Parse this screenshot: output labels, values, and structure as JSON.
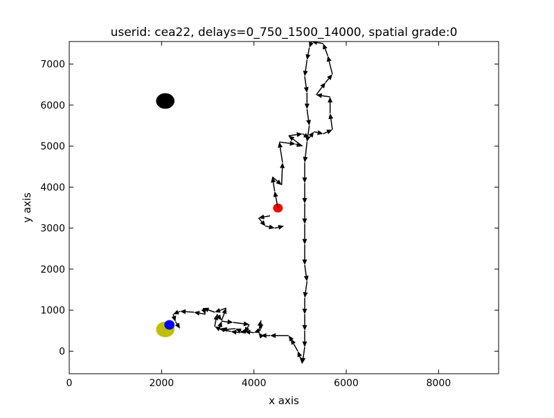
{
  "chart_data": {
    "type": "scatter",
    "title": "userid: cea22, delays=0_750_1500_14000, spatial grade:0",
    "xlabel": "x axis",
    "ylabel": "y axis",
    "xlim": [
      0,
      9300
    ],
    "ylim": [
      7550,
      -550
    ],
    "y_inverted": true,
    "grid": false,
    "x_ticks": [
      0,
      2000,
      4000,
      6000,
      8000
    ],
    "y_ticks": [
      0,
      1000,
      2000,
      3000,
      4000,
      5000,
      6000,
      7000
    ],
    "markers": [
      {
        "name": "yellow",
        "x": 2080,
        "y": 530,
        "rx": 200,
        "ry": 190,
        "color": "#bfbf00"
      },
      {
        "name": "blue",
        "x": 2170,
        "y": 640,
        "rx": 110,
        "ry": 115,
        "color": "#0000ff"
      },
      {
        "name": "red",
        "x": 4520,
        "y": 3490,
        "rx": 105,
        "ry": 110,
        "color": "#ff0000"
      },
      {
        "name": "black",
        "x": 2080,
        "y": 6100,
        "rx": 200,
        "ry": 190,
        "color": "#000000"
      }
    ],
    "path": [
      [
        4520,
        3490
      ],
      [
        4450,
        3900
      ],
      [
        4400,
        4250
      ],
      [
        4600,
        4050
      ],
      [
        4620,
        4600
      ],
      [
        4550,
        5100
      ],
      [
        4900,
        5050
      ],
      [
        5050,
        5000
      ],
      [
        4750,
        5250
      ],
      [
        5050,
        5300
      ],
      [
        5200,
        5200
      ],
      [
        5300,
        5350
      ],
      [
        5500,
        5300
      ],
      [
        5700,
        5400
      ],
      [
        5650,
        5800
      ],
      [
        5650,
        6200
      ],
      [
        5350,
        6250
      ],
      [
        5550,
        6550
      ],
      [
        5700,
        6750
      ],
      [
        5600,
        7200
      ],
      [
        5500,
        7500
      ],
      [
        5250,
        7550
      ],
      [
        5200,
        7400
      ],
      [
        5150,
        7100
      ],
      [
        5100,
        6700
      ],
      [
        5150,
        6300
      ],
      [
        5150,
        5900
      ],
      [
        5200,
        5500
      ],
      [
        5150,
        5100
      ],
      [
        5100,
        4600
      ],
      [
        5100,
        4100
      ],
      [
        5100,
        3600
      ],
      [
        5100,
        3100
      ],
      [
        5100,
        2600
      ],
      [
        5100,
        2100
      ],
      [
        5150,
        1700
      ],
      [
        5100,
        1300
      ],
      [
        5100,
        900
      ],
      [
        5100,
        500
      ],
      [
        5100,
        100
      ],
      [
        5050,
        -300
      ],
      [
        4950,
        0
      ],
      [
        4800,
        300
      ],
      [
        4750,
        380
      ],
      [
        4350,
        380
      ],
      [
        4150,
        380
      ],
      [
        4100,
        450
      ],
      [
        4150,
        750
      ],
      [
        4150,
        520
      ],
      [
        4000,
        450
      ],
      [
        3800,
        480
      ],
      [
        3700,
        450
      ],
      [
        3500,
        480
      ],
      [
        3250,
        550
      ],
      [
        3300,
        730
      ],
      [
        3550,
        700
      ],
      [
        3900,
        650
      ],
      [
        3800,
        450
      ],
      [
        3600,
        550
      ],
      [
        3300,
        520
      ],
      [
        3150,
        600
      ],
      [
        3200,
        900
      ],
      [
        3300,
        750
      ],
      [
        3400,
        1050
      ],
      [
        3150,
        950
      ],
      [
        2900,
        1050
      ],
      [
        2950,
        900
      ],
      [
        2700,
        950
      ],
      [
        2400,
        970
      ],
      [
        2250,
        900
      ],
      [
        2300,
        720
      ],
      [
        2400,
        550
      ]
    ],
    "aux_path": [
      [
        4350,
        3300
      ],
      [
        4100,
        3250
      ],
      [
        4250,
        3050
      ],
      [
        4450,
        3000
      ],
      [
        4650,
        3050
      ]
    ]
  }
}
